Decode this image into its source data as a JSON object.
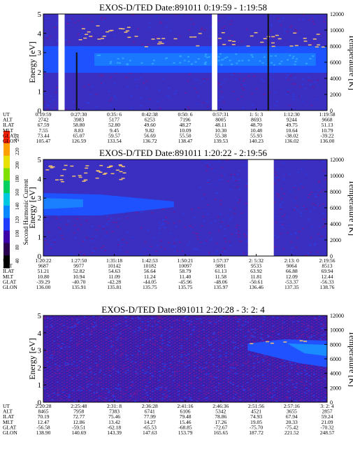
{
  "colorbar": {
    "label": "Second Harmonic Current",
    "ticks": [
      "40",
      "80",
      "100",
      "120",
      "140",
      "160",
      "180",
      "200",
      "220",
      "250"
    ],
    "colors": [
      "#000000",
      "#2a0050",
      "#3b00a8",
      "#1f3cff",
      "#0a88ff",
      "#00c8e0",
      "#00d060",
      "#7fe000",
      "#e8e000",
      "#ffa000",
      "#ff2000"
    ]
  },
  "panels": [
    {
      "title": "EXOS-D/TED   Date:891011   0:19:59 - 1:19:58",
      "ylabel": "Energy [eV]",
      "y2label": "Temperature [K]",
      "yticks": [
        "0",
        "1",
        "2",
        "3",
        "4",
        "5"
      ],
      "y2ticks": [
        "0",
        "2000",
        "4000",
        "6000",
        "8000",
        "10000",
        "12000"
      ],
      "rows": [
        {
          "name": "UT",
          "values": [
            "0:19:59",
            "0:27:30",
            "0:35: 6",
            "0:42:38",
            "0:50: 6",
            "0:57:31",
            "1: 5: 3",
            "1:12:30",
            "1:19:58"
          ]
        },
        {
          "name": "ALT",
          "values": [
            "2742",
            "3983",
            "5177",
            "6253",
            "7196",
            "8005",
            "8693",
            "9244",
            "9668"
          ]
        },
        {
          "name": "ILAT",
          "values": [
            "67.59",
            "58.80",
            "52.80",
            "49.60",
            "48.27",
            "48.11",
            "48.70",
            "49.75",
            "51.13"
          ]
        },
        {
          "name": "MLT",
          "values": [
            "7.55",
            "8.83",
            "9.45",
            "9.82",
            "10.09",
            "10.30",
            "10.48",
            "10.64",
            "10.79"
          ]
        },
        {
          "name": "GLAT",
          "values": [
            "73.44",
            "65.07",
            "59.57",
            "56.69",
            "55.50",
            "55.38",
            "55.93",
            "-38.02",
            "-39.22"
          ]
        },
        {
          "name": "GLON",
          "values": [
            "105.47",
            "126.59",
            "133.54",
            "136.72",
            "138.47",
            "139.53",
            "140.23",
            "136.02",
            "136.00"
          ]
        }
      ],
      "data_gaps": [
        [
          0.053,
          0.075
        ],
        [
          0.594,
          0.613
        ]
      ]
    },
    {
      "title": "EXOS-D/TED   Date:891011   1:20:22 - 2:19:56",
      "ylabel": "Energy [eV]",
      "y2label": "Temperature [K]",
      "yticks": [
        "0",
        "1",
        "2",
        "3",
        "4",
        "5"
      ],
      "y2ticks": [
        "0",
        "2000",
        "4000",
        "6000",
        "8000",
        "10000",
        "12000"
      ],
      "rows": [
        {
          "name": "UT",
          "values": [
            "1:20:22",
            "1:27:50",
            "1:35:18",
            "1:42:53",
            "1:50:21",
            "1:57:37",
            "2: 5:32",
            "2:13: 0",
            "2:19:56"
          ]
        },
        {
          "name": "ALT",
          "values": [
            "9687",
            "9977",
            "10142",
            "10182",
            "10097",
            "9891",
            "9533",
            "9064",
            "8513"
          ]
        },
        {
          "name": "ILAT",
          "values": [
            "51.21",
            "52.82",
            "54.63",
            "56.64",
            "58.79",
            "61.13",
            "63.92",
            "66.88",
            "69.94"
          ]
        },
        {
          "name": "MLT",
          "values": [
            "10.80",
            "10.94",
            "11.09",
            "11.24",
            "11.40",
            "11.58",
            "11.81",
            "12.09",
            "12.44"
          ]
        },
        {
          "name": "GLAT",
          "values": [
            "-39.29",
            "-40.70",
            "-42.28",
            "-44.05",
            "-45.96",
            "-48.06",
            "-50.61",
            "-53.37",
            "-56.33"
          ]
        },
        {
          "name": "GLON",
          "values": [
            "136.00",
            "135.91",
            "135.81",
            "135.75",
            "135.75",
            "135.97",
            "136.46",
            "137.35",
            "138.76"
          ]
        }
      ],
      "data_gaps": [
        [
          0.721,
          0.812
        ]
      ]
    },
    {
      "title": "EXOS-D/TED   Date:891011   2:20:28 - 3: 2: 4",
      "ylabel": "Energy [eV]",
      "y2label": "Temperature [K]",
      "yticks": [
        "0",
        "1",
        "2",
        "3",
        "4",
        "5"
      ],
      "y2ticks": [
        "0",
        "2000",
        "4000",
        "6000",
        "8000",
        "10000",
        "12000"
      ],
      "rows": [
        {
          "name": "UT",
          "values": [
            "2:20:28",
            "2:25:48",
            "2:31: 8",
            "2:36:28",
            "2:41:16",
            "2:46:36",
            "2:51:56",
            "2:57:16",
            "3: 2: 4"
          ]
        },
        {
          "name": "ALT",
          "values": [
            "8465",
            "7958",
            "7383",
            "6741",
            "6106",
            "5342",
            "4521",
            "3655",
            "2857"
          ]
        },
        {
          "name": "ILAT",
          "values": [
            "70.19",
            "72.77",
            "75.46",
            "77.99",
            "79.48",
            "78.86",
            "74.93",
            "67.94",
            "59.24"
          ]
        },
        {
          "name": "MLT",
          "values": [
            "12.47",
            "12.86",
            "13.42",
            "14.27",
            "15.46",
            "17.26",
            "19.05",
            "20.33",
            "21.09"
          ]
        },
        {
          "name": "GLAT",
          "values": [
            "-56.58",
            "-59.51",
            "-62.18",
            "-65.53",
            "-68.85",
            "-72.67",
            "-75.70",
            "-75.42",
            "-70.32"
          ]
        },
        {
          "name": "GLON",
          "values": [
            "138.90",
            "140.69",
            "143.39",
            "147.63",
            "153.79",
            "165.65",
            "187.72",
            "221.52",
            "248.57"
          ]
        }
      ],
      "data_gaps": []
    }
  ],
  "chart_data": [
    {
      "type": "heatmap",
      "title": "EXOS-D/TED   Date:891011   0:19:59 - 1:19:58",
      "xlabel": "UT",
      "ylabel": "Energy [eV]",
      "y2label": "Temperature [K]",
      "ylim": [
        0,
        5
      ],
      "y2lim": [
        0,
        12000
      ],
      "x_ticks": [
        "0:19:59",
        "0:27:30",
        "0:35: 6",
        "0:42:38",
        "0:50: 6",
        "0:57:31",
        "1: 5: 3",
        "1:12:30",
        "1:19:58"
      ],
      "features": {
        "band_eV": [
          1.8,
          3.2
        ],
        "band_level": "high",
        "temperature_K_approx": [
          7600,
          10600
        ]
      }
    },
    {
      "type": "heatmap",
      "title": "EXOS-D/TED   Date:891011   1:20:22 - 2:19:56",
      "xlabel": "UT",
      "ylabel": "Energy [eV]",
      "y2label": "Temperature [K]",
      "ylim": [
        0,
        5
      ],
      "y2lim": [
        0,
        12000
      ],
      "x_ticks": [
        "1:20:22",
        "1:27:50",
        "1:35:18",
        "1:42:53",
        "1:50:21",
        "1:57:37",
        "2: 5:32",
        "2:13: 0",
        "2:19:56"
      ],
      "features": {
        "band_eV": [
          2.0,
          3.0
        ],
        "band_fades_by": "1:42:53",
        "temperature_K_approx": [
          9600,
          11200
        ]
      }
    },
    {
      "type": "heatmap",
      "title": "EXOS-D/TED   Date:891011   2:20:28 - 3: 2: 4",
      "xlabel": "UT",
      "ylabel": "Energy [eV]",
      "y2label": "Temperature [K]",
      "ylim": [
        0,
        5
      ],
      "y2lim": [
        0,
        12000
      ],
      "x_ticks": [
        "2:20:28",
        "2:25:48",
        "2:31: 8",
        "2:36:28",
        "2:41:16",
        "2:46:36",
        "2:51:56",
        "2:57:16",
        "3: 2: 4"
      ],
      "features": {
        "band_eV": [
          2.2,
          3.4
        ],
        "band_onset": "2:51:56",
        "temperature_K_approx": [
          8200,
          8600
        ]
      }
    }
  ]
}
